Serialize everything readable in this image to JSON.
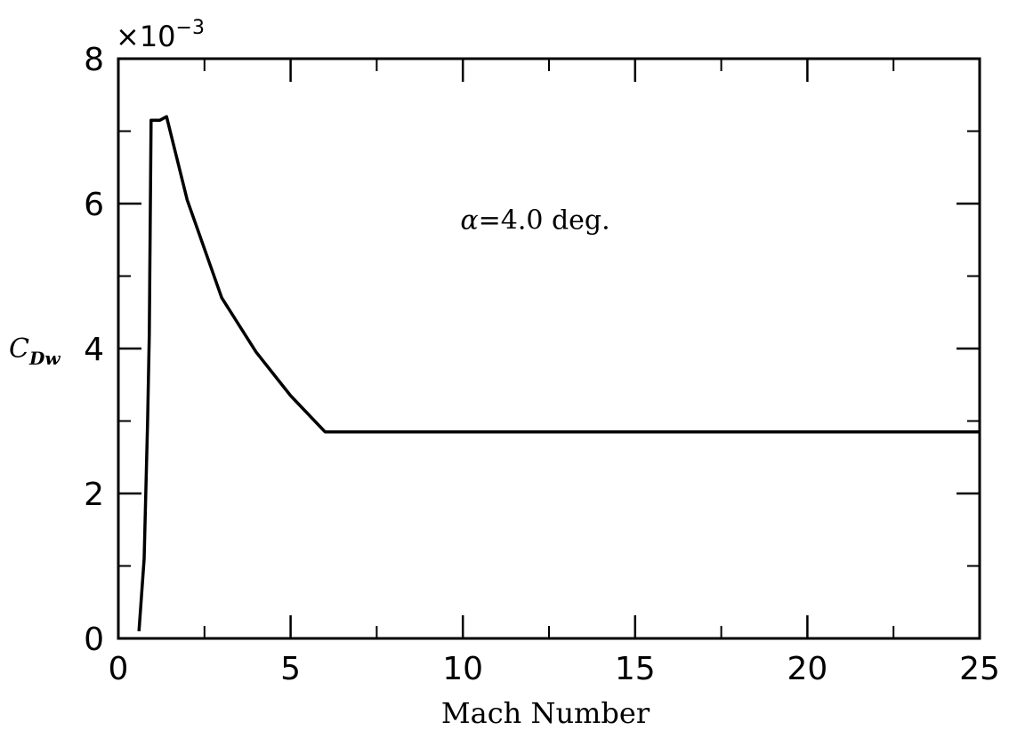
{
  "chart_data": {
    "type": "line",
    "title": "",
    "xlabel": "Mach Number",
    "ylabel": {
      "main": "C",
      "sub": "Dw"
    },
    "y_multiplier": {
      "base": "×10",
      "exponent": "−3"
    },
    "xlim": [
      0,
      25
    ],
    "ylim": [
      0,
      8
    ],
    "x_ticks": [
      0,
      5,
      10,
      15,
      20,
      25
    ],
    "x_tick_labels": [
      "0",
      "5",
      "10",
      "15",
      "20",
      "25"
    ],
    "y_ticks": [
      0,
      2,
      4,
      6,
      8
    ],
    "y_tick_labels": [
      "0",
      "2",
      "4",
      "6",
      "8"
    ],
    "x_minor_step": 2.5,
    "y_minor_step": 1,
    "grid": false,
    "series": [
      {
        "color": "#000000",
        "x": [
          0.6,
          0.75,
          0.85,
          0.9,
          0.95,
          1.0,
          1.2,
          1.4,
          2.0,
          3.0,
          4.0,
          5.0,
          6.0,
          7.0,
          10.0,
          15.0,
          20.0,
          25.0
        ],
        "y": [
          0.1,
          1.1,
          3.0,
          4.2,
          7.15,
          7.15,
          7.15,
          7.2,
          6.05,
          4.7,
          3.95,
          3.35,
          2.85,
          2.85,
          2.85,
          2.85,
          2.85,
          2.85
        ]
      }
    ],
    "annotations": [
      {
        "symbol": "α",
        "text": "=4.0 deg.",
        "x": 12.1,
        "y": 5.65
      }
    ]
  }
}
